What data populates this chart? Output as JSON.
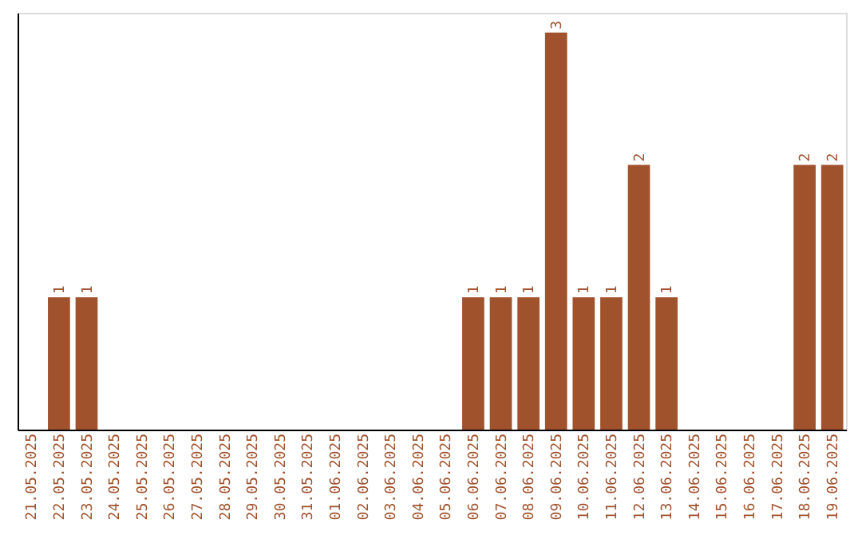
{
  "chart_data": {
    "type": "bar",
    "categories": [
      "21.05.2025",
      "22.05.2025",
      "23.05.2025",
      "24.05.2025",
      "25.05.2025",
      "26.05.2025",
      "27.05.2025",
      "28.05.2025",
      "29.05.2025",
      "30.05.2025",
      "31.05.2025",
      "01.06.2025",
      "02.06.2025",
      "03.06.2025",
      "04.06.2025",
      "05.06.2025",
      "06.06.2025",
      "07.06.2025",
      "08.06.2025",
      "09.06.2025",
      "10.06.2025",
      "11.06.2025",
      "12.06.2025",
      "13.06.2025",
      "14.06.2025",
      "15.06.2025",
      "16.06.2025",
      "17.06.2025",
      "18.06.2025",
      "19.06.2025"
    ],
    "series": [
      {
        "color": "#a0522d",
        "values": [
          0,
          1,
          1,
          0,
          0,
          0,
          0,
          0,
          0,
          0,
          0,
          0,
          0,
          0,
          0,
          0,
          1,
          1,
          1,
          3,
          1,
          1,
          2,
          1,
          0,
          0,
          0,
          0,
          2,
          2
        ],
        "value_labels": [
          null,
          "1",
          "1",
          null,
          null,
          null,
          null,
          null,
          null,
          null,
          null,
          null,
          null,
          null,
          null,
          null,
          "1",
          "1",
          "1",
          "3",
          "1",
          "1",
          "2",
          "1",
          null,
          null,
          null,
          null,
          "2",
          "2"
        ]
      }
    ],
    "grid": false
  }
}
